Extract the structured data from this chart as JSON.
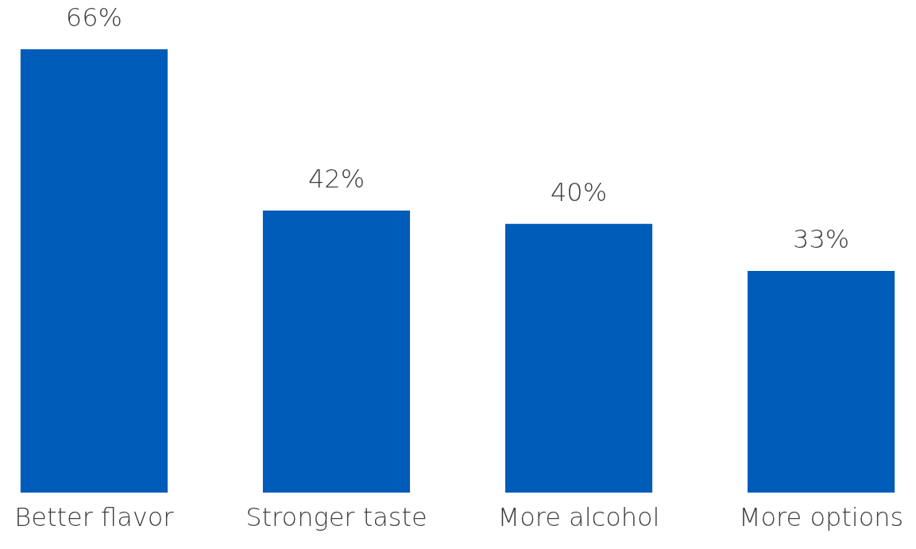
{
  "chart_data": {
    "type": "bar",
    "categories": [
      "Better flavor",
      "Stronger taste",
      "More alcohol",
      "More options"
    ],
    "values": [
      66,
      42,
      40,
      33
    ],
    "value_labels": [
      "66%",
      "42%",
      "40%",
      "33%"
    ],
    "color": "#005cb9"
  }
}
